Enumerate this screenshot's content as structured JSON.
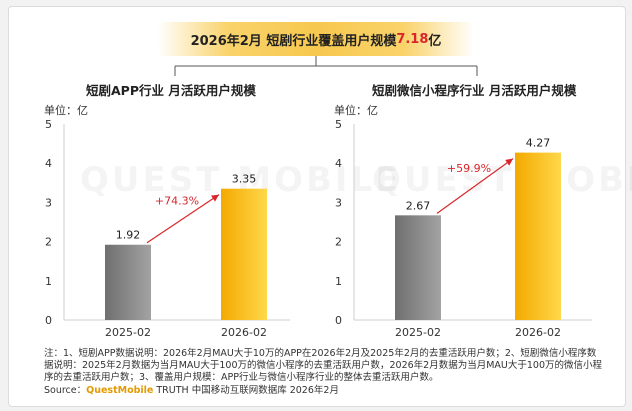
{
  "banner": {
    "prefix": "2026年2月 短剧行业覆盖用户规模",
    "highlight": "7.18",
    "suffix": "亿"
  },
  "watermark": "QUEST MOBILE",
  "chart_data": [
    {
      "type": "bar",
      "title": "短剧APP行业 月活跃用户规模",
      "unit_label": "单位：亿",
      "categories": [
        "2025-02",
        "2026-02"
      ],
      "values": [
        1.92,
        3.35
      ],
      "value_labels": [
        "1.92",
        "3.35"
      ],
      "growth_label": "+74.3%",
      "ylim": [
        0,
        5
      ],
      "yticks": [
        "0",
        "1",
        "2",
        "3",
        "4",
        "5"
      ],
      "bar_colors": [
        "#858585",
        "#f5b800"
      ],
      "growth_color": "#d9262c"
    },
    {
      "type": "bar",
      "title": "短剧微信小程序行业 月活跃用户规模",
      "unit_label": "单位：亿",
      "categories": [
        "2025-02",
        "2026-02"
      ],
      "values": [
        2.67,
        4.27
      ],
      "value_labels": [
        "2.67",
        "4.27"
      ],
      "growth_label": "+59.9%",
      "ylim": [
        0,
        5
      ],
      "yticks": [
        "0",
        "1",
        "2",
        "3",
        "4",
        "5"
      ],
      "bar_colors": [
        "#858585",
        "#f5b800"
      ],
      "growth_color": "#d9262c"
    }
  ],
  "notes": {
    "text": "注：1、短剧APP数据说明：2026年2月MAU大于10万的APP在2026年2月及2025年2月的去重活跃用户数；2、短剧微信小程序数据说明：2025年2月数据为当月MAU大于100万的微信小程序的去重活跃用户数，2026年2月数据为当月MAU大于100万的微信小程序的去重活跃用户数；3、覆盖用户规模：APP行业与微信小程序行业的整体去重活跃用户数。",
    "source_prefix": "Source：",
    "source_brand": "QuestMobile",
    "source_suffix": " TRUTH 中国移动互联网数据库 2026年2月"
  }
}
